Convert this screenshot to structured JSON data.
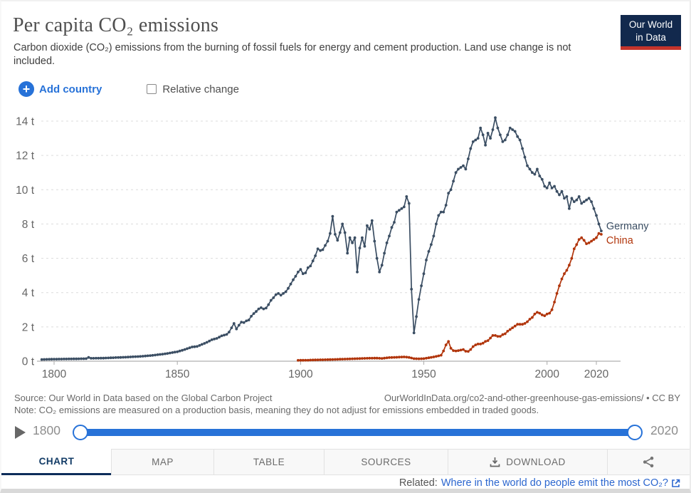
{
  "header": {
    "title": "Per capita CO₂ emissions",
    "subtitle": "Carbon dioxide (CO₂) emissions from the burning of fossil fuels for energy and cement production. Land use change is not included.",
    "logo_line1": "Our World",
    "logo_line2": "in Data",
    "logo_bg_color": "#12294d",
    "logo_stripe_color": "#c5342b"
  },
  "controls": {
    "add_country_label": "Add country",
    "relative_change_label": "Relative change",
    "accent_color": "#2772d8"
  },
  "chart_data": {
    "type": "line",
    "title": "Per capita CO₂ emissions",
    "unit": "t",
    "ylim": [
      0,
      14
    ],
    "yticks": [
      0,
      2,
      4,
      6,
      8,
      10,
      12,
      14
    ],
    "xticks": [
      1800,
      1850,
      1900,
      1950,
      2000,
      2020
    ],
    "grid": true,
    "legend": "end-of-line-labels",
    "series": [
      {
        "name": "Germany",
        "color": "#3b4e63",
        "label_dy": -2,
        "points": [
          [
            1795,
            0.1
          ],
          [
            1800,
            0.12
          ],
          [
            1805,
            0.13
          ],
          [
            1810,
            0.14
          ],
          [
            1813,
            0.15
          ],
          [
            1814,
            0.22
          ],
          [
            1815,
            0.17
          ],
          [
            1820,
            0.18
          ],
          [
            1825,
            0.21
          ],
          [
            1830,
            0.24
          ],
          [
            1835,
            0.28
          ],
          [
            1840,
            0.34
          ],
          [
            1845,
            0.43
          ],
          [
            1850,
            0.55
          ],
          [
            1853,
            0.68
          ],
          [
            1856,
            0.83
          ],
          [
            1858,
            0.86
          ],
          [
            1860,
            0.98
          ],
          [
            1862,
            1.1
          ],
          [
            1864,
            1.25
          ],
          [
            1866,
            1.33
          ],
          [
            1868,
            1.48
          ],
          [
            1870,
            1.56
          ],
          [
            1871,
            1.7
          ],
          [
            1872,
            1.95
          ],
          [
            1873,
            2.2
          ],
          [
            1874,
            1.88
          ],
          [
            1875,
            2.1
          ],
          [
            1876,
            2.28
          ],
          [
            1877,
            2.25
          ],
          [
            1878,
            2.35
          ],
          [
            1879,
            2.4
          ],
          [
            1880,
            2.62
          ],
          [
            1881,
            2.78
          ],
          [
            1882,
            2.9
          ],
          [
            1883,
            3.05
          ],
          [
            1884,
            3.12
          ],
          [
            1885,
            3.05
          ],
          [
            1886,
            3.1
          ],
          [
            1887,
            3.3
          ],
          [
            1888,
            3.55
          ],
          [
            1889,
            3.7
          ],
          [
            1890,
            3.88
          ],
          [
            1891,
            3.95
          ],
          [
            1892,
            3.85
          ],
          [
            1893,
            3.95
          ],
          [
            1894,
            4.05
          ],
          [
            1895,
            4.25
          ],
          [
            1896,
            4.5
          ],
          [
            1897,
            4.75
          ],
          [
            1898,
            4.95
          ],
          [
            1899,
            5.2
          ],
          [
            1900,
            5.35
          ],
          [
            1901,
            5.1
          ],
          [
            1902,
            5.15
          ],
          [
            1903,
            5.45
          ],
          [
            1904,
            5.55
          ],
          [
            1905,
            5.85
          ],
          [
            1906,
            6.15
          ],
          [
            1907,
            6.55
          ],
          [
            1908,
            6.45
          ],
          [
            1909,
            6.5
          ],
          [
            1910,
            6.75
          ],
          [
            1911,
            7.0
          ],
          [
            1912,
            7.45
          ],
          [
            1913,
            8.45
          ],
          [
            1914,
            7.4
          ],
          [
            1915,
            7.05
          ],
          [
            1916,
            7.5
          ],
          [
            1917,
            8.0
          ],
          [
            1918,
            7.5
          ],
          [
            1919,
            6.3
          ],
          [
            1920,
            7.2
          ],
          [
            1921,
            6.9
          ],
          [
            1922,
            7.2
          ],
          [
            1923,
            5.2
          ],
          [
            1924,
            6.6
          ],
          [
            1925,
            7.2
          ],
          [
            1926,
            6.7
          ],
          [
            1927,
            7.9
          ],
          [
            1928,
            7.7
          ],
          [
            1929,
            8.2
          ],
          [
            1930,
            7.0
          ],
          [
            1931,
            6.0
          ],
          [
            1932,
            5.2
          ],
          [
            1933,
            5.6
          ],
          [
            1934,
            6.3
          ],
          [
            1935,
            6.9
          ],
          [
            1936,
            7.3
          ],
          [
            1937,
            7.8
          ],
          [
            1938,
            8.1
          ],
          [
            1939,
            8.7
          ],
          [
            1940,
            8.8
          ],
          [
            1941,
            8.9
          ],
          [
            1942,
            9.0
          ],
          [
            1943,
            9.6
          ],
          [
            1944,
            9.2
          ],
          [
            1945,
            4.2
          ],
          [
            1946,
            1.65
          ],
          [
            1947,
            2.6
          ],
          [
            1948,
            3.6
          ],
          [
            1949,
            4.4
          ],
          [
            1950,
            5.1
          ],
          [
            1951,
            5.9
          ],
          [
            1952,
            6.4
          ],
          [
            1953,
            6.8
          ],
          [
            1954,
            7.3
          ],
          [
            1955,
            8.0
          ],
          [
            1956,
            8.5
          ],
          [
            1957,
            8.7
          ],
          [
            1958,
            8.7
          ],
          [
            1959,
            9.1
          ],
          [
            1960,
            9.8
          ],
          [
            1961,
            10.0
          ],
          [
            1962,
            10.5
          ],
          [
            1963,
            11.0
          ],
          [
            1964,
            11.2
          ],
          [
            1965,
            11.3
          ],
          [
            1966,
            11.4
          ],
          [
            1967,
            11.2
          ],
          [
            1968,
            11.8
          ],
          [
            1969,
            12.4
          ],
          [
            1970,
            12.8
          ],
          [
            1971,
            12.9
          ],
          [
            1972,
            13.0
          ],
          [
            1973,
            13.6
          ],
          [
            1974,
            13.2
          ],
          [
            1975,
            12.6
          ],
          [
            1976,
            13.3
          ],
          [
            1977,
            13.0
          ],
          [
            1978,
            13.5
          ],
          [
            1979,
            14.2
          ],
          [
            1980,
            13.6
          ],
          [
            1981,
            13.2
          ],
          [
            1982,
            12.8
          ],
          [
            1983,
            12.9
          ],
          [
            1984,
            13.2
          ],
          [
            1985,
            13.6
          ],
          [
            1986,
            13.5
          ],
          [
            1987,
            13.4
          ],
          [
            1988,
            13.1
          ],
          [
            1989,
            12.9
          ],
          [
            1990,
            12.4
          ],
          [
            1991,
            11.9
          ],
          [
            1992,
            11.4
          ],
          [
            1993,
            11.2
          ],
          [
            1994,
            11.0
          ],
          [
            1995,
            10.9
          ],
          [
            1996,
            11.2
          ],
          [
            1997,
            10.8
          ],
          [
            1998,
            10.6
          ],
          [
            1999,
            10.2
          ],
          [
            2000,
            10.1
          ],
          [
            2001,
            10.4
          ],
          [
            2002,
            10.1
          ],
          [
            2003,
            10.2
          ],
          [
            2004,
            9.9
          ],
          [
            2005,
            9.7
          ],
          [
            2006,
            9.9
          ],
          [
            2007,
            9.5
          ],
          [
            2008,
            9.6
          ],
          [
            2009,
            8.9
          ],
          [
            2010,
            9.5
          ],
          [
            2011,
            9.3
          ],
          [
            2012,
            9.4
          ],
          [
            2013,
            9.6
          ],
          [
            2014,
            9.2
          ],
          [
            2015,
            9.3
          ],
          [
            2016,
            9.4
          ],
          [
            2017,
            9.5
          ],
          [
            2018,
            9.3
          ],
          [
            2019,
            8.9
          ],
          [
            2020,
            8.5
          ],
          [
            2021,
            8.0
          ],
          [
            2022,
            7.6
          ]
        ]
      },
      {
        "name": "China",
        "color": "#b1350b",
        "label_dy": 13,
        "points": [
          [
            1899,
            0.05
          ],
          [
            1903,
            0.06
          ],
          [
            1907,
            0.08
          ],
          [
            1911,
            0.09
          ],
          [
            1915,
            0.11
          ],
          [
            1919,
            0.13
          ],
          [
            1923,
            0.15
          ],
          [
            1927,
            0.17
          ],
          [
            1931,
            0.18
          ],
          [
            1933,
            0.16
          ],
          [
            1936,
            0.21
          ],
          [
            1939,
            0.23
          ],
          [
            1942,
            0.25
          ],
          [
            1944,
            0.22
          ],
          [
            1946,
            0.15
          ],
          [
            1948,
            0.14
          ],
          [
            1950,
            0.15
          ],
          [
            1952,
            0.2
          ],
          [
            1954,
            0.25
          ],
          [
            1956,
            0.31
          ],
          [
            1957,
            0.35
          ],
          [
            1958,
            0.6
          ],
          [
            1959,
            0.95
          ],
          [
            1960,
            1.15
          ],
          [
            1961,
            0.75
          ],
          [
            1962,
            0.62
          ],
          [
            1963,
            0.6
          ],
          [
            1964,
            0.62
          ],
          [
            1965,
            0.65
          ],
          [
            1966,
            0.68
          ],
          [
            1967,
            0.58
          ],
          [
            1968,
            0.57
          ],
          [
            1969,
            0.68
          ],
          [
            1970,
            0.85
          ],
          [
            1971,
            0.95
          ],
          [
            1972,
            1.0
          ],
          [
            1973,
            1.0
          ],
          [
            1974,
            1.05
          ],
          [
            1975,
            1.15
          ],
          [
            1976,
            1.2
          ],
          [
            1977,
            1.35
          ],
          [
            1978,
            1.5
          ],
          [
            1979,
            1.5
          ],
          [
            1980,
            1.45
          ],
          [
            1981,
            1.45
          ],
          [
            1982,
            1.55
          ],
          [
            1983,
            1.6
          ],
          [
            1984,
            1.75
          ],
          [
            1985,
            1.85
          ],
          [
            1986,
            1.95
          ],
          [
            1987,
            2.05
          ],
          [
            1988,
            2.15
          ],
          [
            1989,
            2.15
          ],
          [
            1990,
            2.15
          ],
          [
            1991,
            2.2
          ],
          [
            1992,
            2.3
          ],
          [
            1993,
            2.45
          ],
          [
            1994,
            2.55
          ],
          [
            1995,
            2.75
          ],
          [
            1996,
            2.85
          ],
          [
            1997,
            2.8
          ],
          [
            1998,
            2.7
          ],
          [
            1999,
            2.65
          ],
          [
            2000,
            2.75
          ],
          [
            2001,
            2.8
          ],
          [
            2002,
            3.0
          ],
          [
            2003,
            3.45
          ],
          [
            2004,
            3.95
          ],
          [
            2005,
            4.4
          ],
          [
            2006,
            4.8
          ],
          [
            2007,
            5.1
          ],
          [
            2008,
            5.3
          ],
          [
            2009,
            5.6
          ],
          [
            2010,
            6.0
          ],
          [
            2011,
            6.55
          ],
          [
            2012,
            6.8
          ],
          [
            2013,
            7.1
          ],
          [
            2014,
            7.2
          ],
          [
            2015,
            7.05
          ],
          [
            2016,
            6.85
          ],
          [
            2017,
            6.9
          ],
          [
            2018,
            7.0
          ],
          [
            2019,
            7.1
          ],
          [
            2020,
            7.2
          ],
          [
            2021,
            7.45
          ],
          [
            2022,
            7.4
          ]
        ]
      }
    ]
  },
  "footer": {
    "source": "Source: Our World in Data based on the Global Carbon Project",
    "url": "OurWorldInData.org/co2-and-other-greenhouse-gas-emissions/ • CC BY",
    "note": "Note: CO₂ emissions are measured on a production basis, meaning they do not adjust for emissions embedded in traded goods."
  },
  "timeline": {
    "start_label": "1800",
    "end_label": "2020"
  },
  "tabs": [
    {
      "label": "CHART",
      "active": true
    },
    {
      "label": "MAP",
      "active": false
    },
    {
      "label": "TABLE",
      "active": false
    },
    {
      "label": "SOURCES",
      "active": false
    },
    {
      "label": "DOWNLOAD",
      "active": false
    }
  ],
  "related": {
    "prefix": "Related:",
    "link": "Where in the world do people emit the most CO₂?"
  }
}
